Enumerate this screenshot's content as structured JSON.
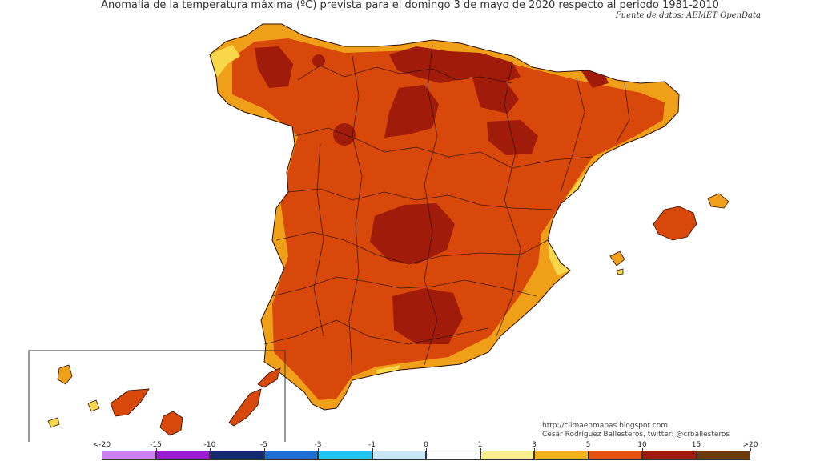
{
  "map": {
    "title": "Anomalía de la temperatura máxima (ºC) prevista para el domingo 3 de mayo de 2020 respecto al periodo 1981-2010",
    "source": "Fuente de datos: AEMET OpenData",
    "credits": {
      "blog": "http://climaenmapas.blogspot.com",
      "author": "César Rodríguez Ballesteros, twitter: @crballesteros"
    },
    "colors": {
      "dominant": "#d8480a",
      "hot": "#a01b0a",
      "coast": "#ee9a14",
      "mild": "#f8d84a",
      "water": "#ffffff"
    }
  },
  "legend": {
    "labels": [
      "<-20",
      "-15",
      "-10",
      "-5",
      "-3",
      "-1",
      "0",
      "1",
      "3",
      "5",
      "10",
      "15",
      ">20"
    ],
    "colors": [
      "#d07ff0",
      "#9c1cd2",
      "#142a6e",
      "#1f6ed4",
      "#21c4f2",
      "#c8e6f8",
      "#ffffff",
      "#f8ee90",
      "#f6b21e",
      "#e55414",
      "#a01b0a",
      "#6b3a08"
    ]
  }
}
